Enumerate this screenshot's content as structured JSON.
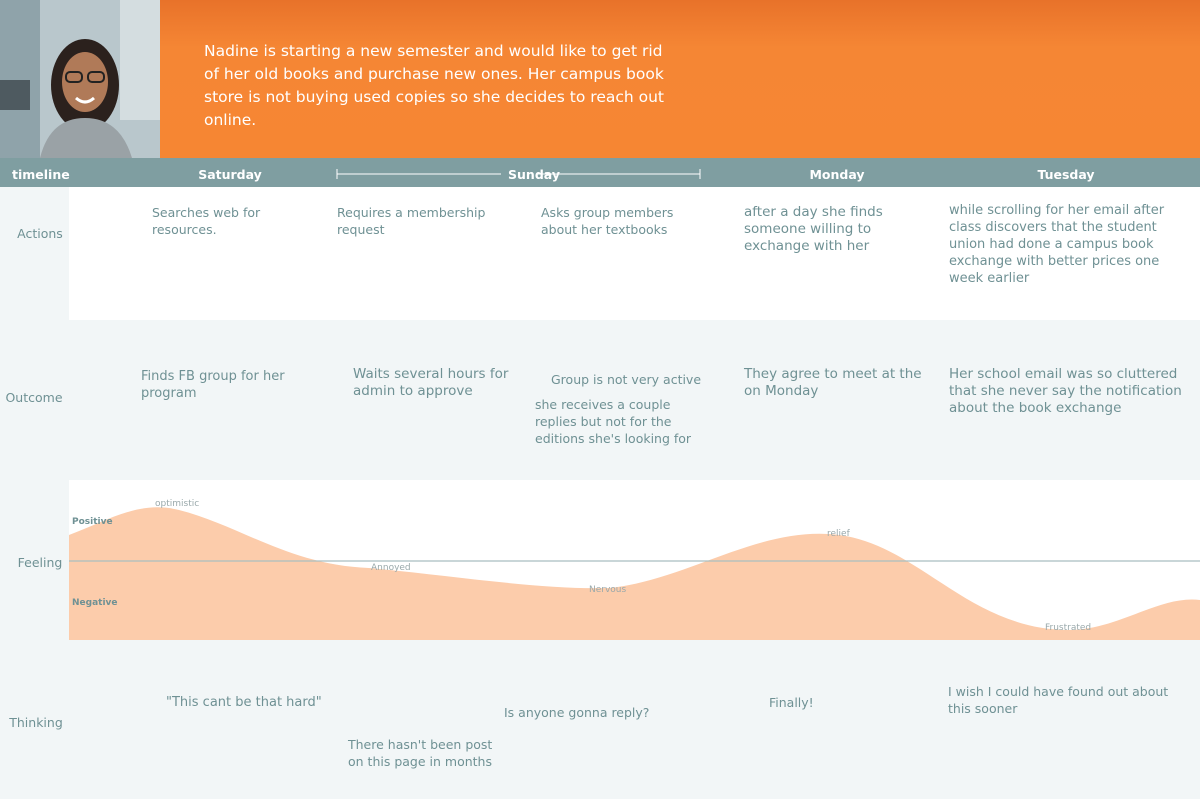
{
  "header": {
    "description": "Nadine is starting a new semester and would like to get rid of her old books and purchase new ones. Her campus book store is not buying used copies so she decides to reach out online."
  },
  "timeline": {
    "label": "timeline",
    "days": [
      "Saturday",
      "Sunday",
      "Monday",
      "Tuesday"
    ]
  },
  "actions": {
    "label": "Actions",
    "items": [
      "Searches web for resources.",
      "Requires a membership request",
      "Asks group members about her textbooks",
      "after a day she finds someone willing to exchange with her",
      "while scrolling for her email after class discovers that the student union had done a campus book exchange with better prices one week earlier"
    ]
  },
  "outcome": {
    "label": "Outcome",
    "items": [
      "Finds FB group for her program",
      "Waits several hours for admin to approve",
      "Group is not very active",
      "she receives a couple replies but not for the editions she's looking for",
      "They agree to meet at the on Monday",
      "Her school email was so cluttered that she never say the notification about the book exchange"
    ]
  },
  "feeling": {
    "label": "Feeling",
    "positive": "Positive",
    "negative": "Negative",
    "emotions": [
      "optimistic",
      "Annoyed",
      "Nervous",
      "relief",
      "Frustrated"
    ]
  },
  "thinking": {
    "label": "Thinking",
    "items": [
      "\"This cant be that hard\"",
      "There hasn't been post on this page in months",
      "Is anyone gonna reply?",
      "Finally!",
      "I wish I could have found out about this sooner"
    ]
  }
}
